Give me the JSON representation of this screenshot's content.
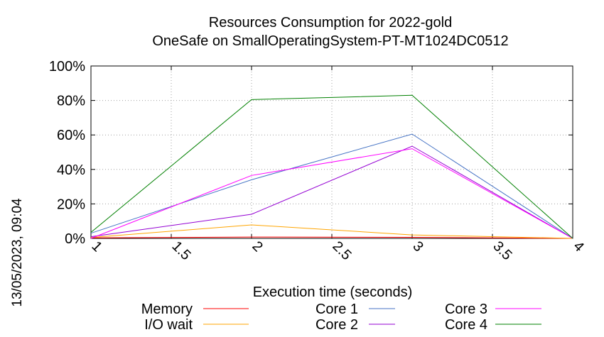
{
  "chart_data": {
    "type": "line",
    "title": "Resources Consumption for 2022-gold",
    "subtitle": "OneSafe on SmallOperatingSystem-PT-MT1024DC0512",
    "xlabel": "Execution time (seconds)",
    "ylabel": "",
    "xlim": [
      1,
      4
    ],
    "ylim": [
      0,
      100
    ],
    "x_ticks": [
      "1",
      "1.5",
      "2",
      "2.5",
      "3",
      "3.5",
      "4"
    ],
    "x_tick_values": [
      1,
      1.5,
      2,
      2.5,
      3,
      3.5,
      4
    ],
    "y_ticks": [
      "0%",
      "20%",
      "40%",
      "60%",
      "80%",
      "100%"
    ],
    "y_tick_values": [
      0,
      20,
      40,
      60,
      80,
      100
    ],
    "grid": true,
    "legend_placement": "bottom",
    "timestamp": "13/05/2023, 09:04",
    "x": [
      1,
      2,
      3,
      4
    ],
    "series": [
      {
        "name": "Memory",
        "color": "#ff0000",
        "values": [
          0.3,
          0.8,
          0.6,
          0
        ]
      },
      {
        "name": "I/O wait",
        "color": "#ffa500",
        "values": [
          0.5,
          7.8,
          2.0,
          0
        ]
      },
      {
        "name": "Core 1",
        "color": "#4472c4",
        "values": [
          3,
          34,
          60.5,
          0
        ]
      },
      {
        "name": "Core 2",
        "color": "#9400d3",
        "values": [
          1,
          14,
          53.5,
          0
        ]
      },
      {
        "name": "Core 3",
        "color": "#ff00ff",
        "values": [
          0,
          36.5,
          52,
          0
        ]
      },
      {
        "name": "Core 4",
        "color": "#008000",
        "values": [
          3.5,
          80.5,
          83,
          0
        ]
      }
    ]
  }
}
